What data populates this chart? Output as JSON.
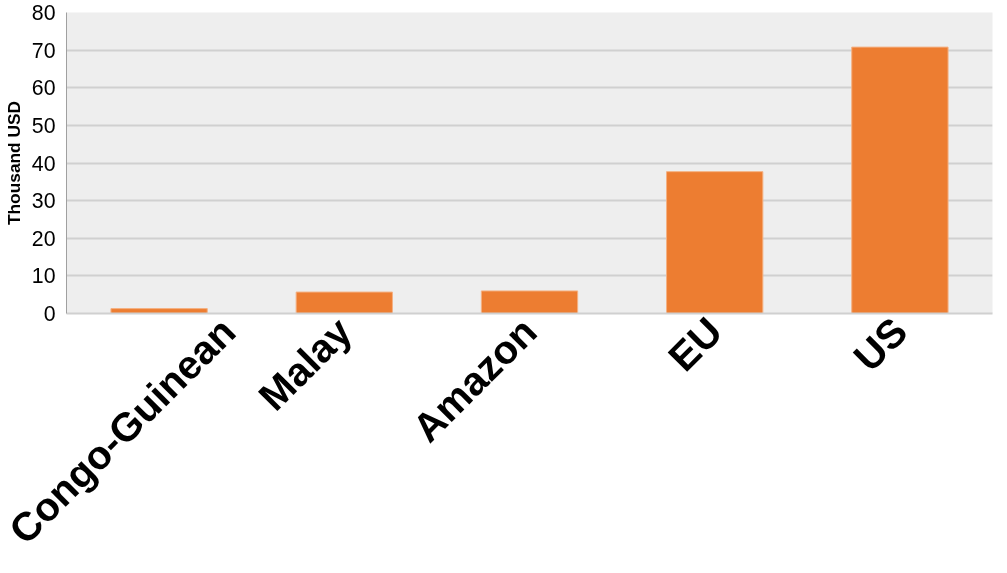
{
  "chart_data": {
    "type": "bar",
    "ylabel": "Thousand USD",
    "categories": [
      "Congo-Guinean",
      "Malay",
      "Amazon",
      "EU",
      "US"
    ],
    "values": [
      1.3,
      5.7,
      6.0,
      37.7,
      70.8
    ],
    "color": "#ed7d31",
    "ylim": [
      0,
      80
    ],
    "yticks": [
      0,
      10,
      20,
      30,
      40,
      50,
      60,
      70,
      80
    ],
    "grid": "y"
  }
}
